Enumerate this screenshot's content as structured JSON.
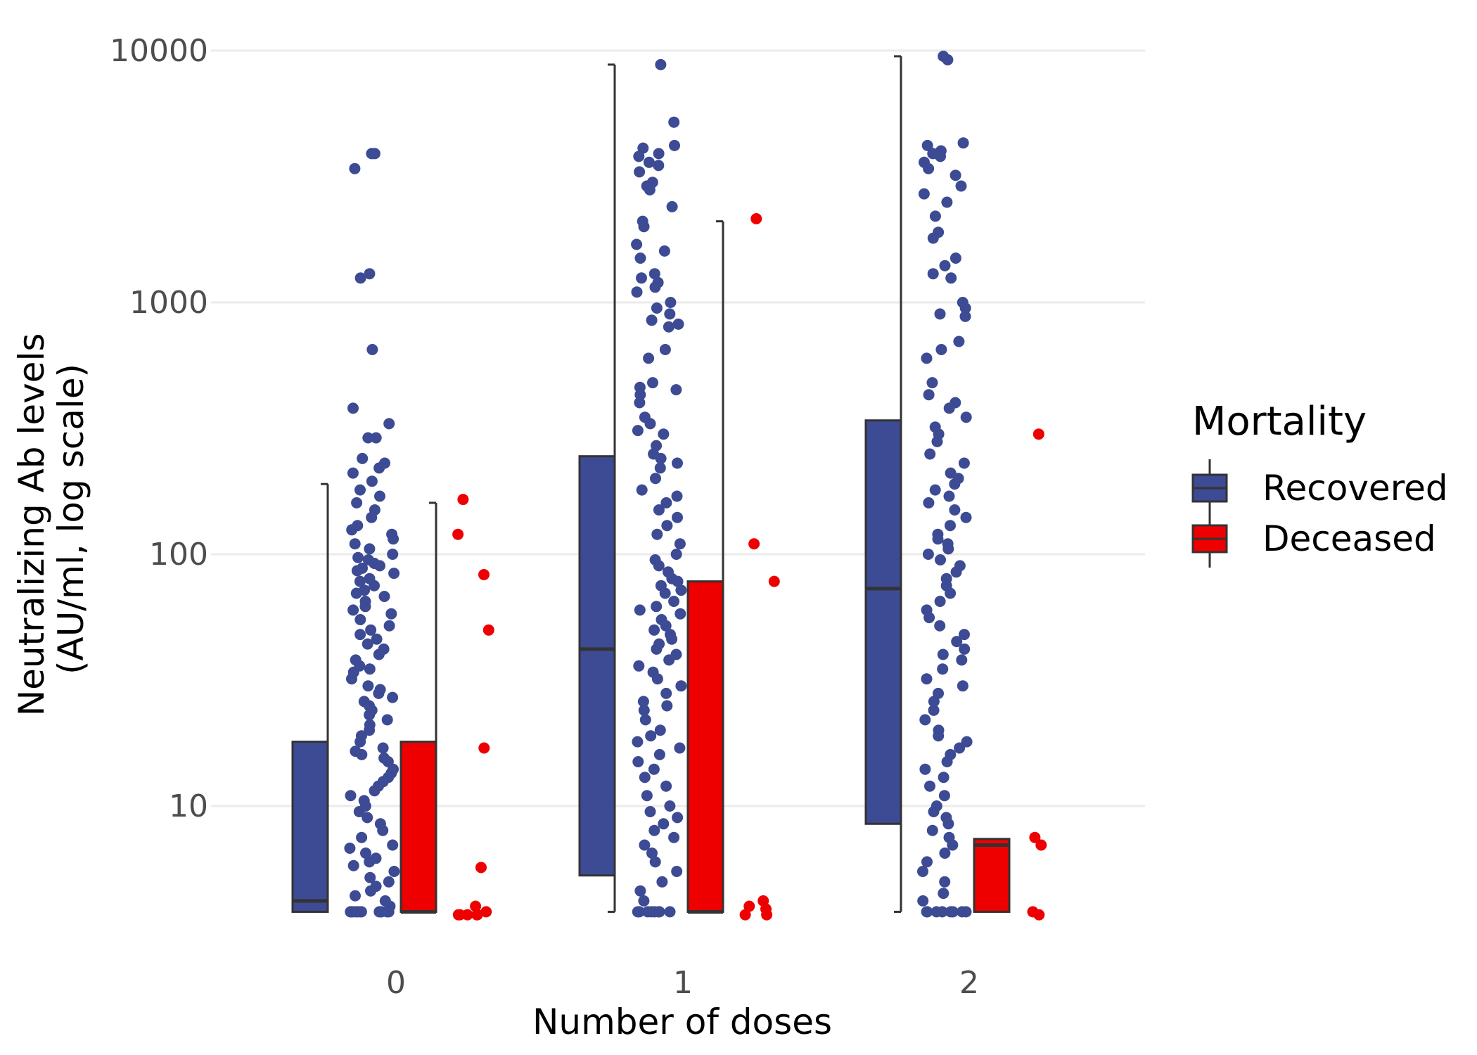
{
  "chart_data": {
    "type": "box",
    "xlabel": "Number of doses",
    "ylabel_line1": "Neutralizing Ab levels",
    "ylabel_line2": "(AU/ml, log scale)",
    "yscale": "log10",
    "ylim": [
      3.3,
      10000
    ],
    "yticks": [
      "10",
      "100",
      "1000",
      "10000"
    ],
    "categories": [
      "0",
      "1",
      "2"
    ],
    "grid": "horizontal major",
    "legend": {
      "title": "Mortality",
      "position": "right",
      "entries": [
        "Recovered",
        "Deceased"
      ]
    },
    "colors": {
      "Recovered": "#3c4b93",
      "Deceased": "#ee0000"
    },
    "series": [
      {
        "name": "Recovered",
        "boxes": [
          {
            "dose": "0",
            "whisker_low": 3.8,
            "q1": 3.8,
            "median": 4.2,
            "q3": 18,
            "whisker_high": 190
          },
          {
            "dose": "1",
            "whisker_low": 3.8,
            "q1": 5.3,
            "median": 42,
            "q3": 245,
            "whisker_high": 8800
          },
          {
            "dose": "2",
            "whisker_low": 3.8,
            "q1": 8.5,
            "median": 73,
            "q3": 340,
            "whisker_high": 9500
          }
        ],
        "points": [
          {
            "dose": "0",
            "y": [
              3900,
              3900,
              3400,
              1250,
              1300,
              650,
              380,
              330,
              290,
              290,
              240,
              230,
              220,
              210,
              195,
              180,
              170,
              160,
              150,
              140,
              130,
              125,
              120,
              115,
              110,
              105,
              100,
              97,
              95,
              92,
              90,
              88,
              86,
              84,
              80,
              78,
              75,
              72,
              70,
              68,
              65,
              62,
              60,
              58,
              55,
              52,
              50,
              48,
              46,
              44,
              42,
              40,
              38,
              36,
              35,
              34,
              32,
              30,
              29,
              28,
              27,
              26,
              25,
              24,
              23,
              22,
              21,
              20,
              19,
              18,
              17,
              16.5,
              16,
              15.5,
              15,
              14,
              13.5,
              13,
              12.5,
              12,
              11.5,
              11,
              10.5,
              10,
              9.5,
              9,
              8.5,
              8,
              7.5,
              7,
              6.8,
              6.5,
              6.2,
              6,
              5.8,
              5.5,
              5.2,
              5,
              4.8,
              4.6,
              4.4,
              4.2,
              4,
              3.8,
              3.8,
              3.8,
              3.8,
              3.8,
              3.8,
              3.8,
              3.8,
              3.8,
              3.8,
              3.8,
              3.8,
              3.8
            ]
          },
          {
            "dose": "1",
            "y": [
              8800,
              5200,
              4200,
              4100,
              3900,
              3800,
              3600,
              3500,
              3300,
              3000,
              2900,
              2800,
              2400,
              2100,
              2000,
              1700,
              1600,
              1500,
              1300,
              1250,
              1200,
              1150,
              1100,
              1000,
              950,
              900,
              850,
              820,
              800,
              650,
              600,
              480,
              460,
              450,
              430,
              400,
              350,
              330,
              310,
              300,
              270,
              250,
              240,
              230,
              220,
              200,
              180,
              170,
              160,
              150,
              140,
              130,
              120,
              110,
              100,
              95,
              90,
              85,
              80,
              78,
              75,
              72,
              70,
              65,
              62,
              60,
              58,
              55,
              52,
              50,
              48,
              46,
              44,
              42,
              40,
              38,
              36,
              34,
              32,
              30,
              28,
              26,
              25,
              24,
              22,
              20,
              19,
              18,
              17,
              16,
              15,
              14,
              13,
              12,
              11,
              10,
              9.5,
              9,
              8.5,
              8,
              7.5,
              7,
              6.5,
              6,
              5.5,
              5,
              4.6,
              4.2,
              3.8,
              3.8,
              3.8,
              3.8,
              3.8,
              3.8,
              3.8,
              3.8
            ]
          },
          {
            "dose": "2",
            "y": [
              9500,
              9200,
              4300,
              4200,
              4000,
              3900,
              3800,
              3600,
              3400,
              3200,
              2900,
              2700,
              2500,
              2200,
              1900,
              1800,
              1500,
              1400,
              1300,
              1250,
              1000,
              950,
              900,
              880,
              700,
              650,
              600,
              480,
              430,
              400,
              380,
              350,
              320,
              300,
              280,
              250,
              230,
              210,
              200,
              190,
              180,
              170,
              160,
              150,
              140,
              130,
              120,
              115,
              110,
              105,
              100,
              95,
              90,
              85,
              80,
              75,
              70,
              65,
              60,
              56,
              52,
              48,
              45,
              42,
              40,
              38,
              35,
              32,
              30,
              28,
              26,
              24,
              22,
              20,
              19,
              18,
              17,
              16,
              15,
              14,
              13,
              12,
              11,
              10,
              9.5,
              9,
              8.5,
              8,
              7.5,
              7,
              6.5,
              6,
              5.5,
              5,
              4.5,
              4.2,
              3.8,
              3.8,
              3.8,
              3.8,
              3.8,
              3.8,
              3.8,
              3.8
            ]
          }
        ]
      },
      {
        "name": "Deceased",
        "boxes": [
          {
            "dose": "0",
            "whisker_low": 3.8,
            "q1": 3.8,
            "median": 3.8,
            "q3": 18,
            "whisker_high": 160
          },
          {
            "dose": "1",
            "whisker_low": 3.8,
            "q1": 3.8,
            "median": 3.8,
            "q3": 78,
            "whisker_high": 2100
          },
          {
            "dose": "2",
            "whisker_low": 3.8,
            "q1": 3.8,
            "median": 7,
            "q3": 7.4,
            "whisker_high": 7.4
          }
        ],
        "points": [
          {
            "dose": "0",
            "y": [
              165,
              120,
              83,
              50,
              17,
              5.7,
              4.0,
              3.8,
              3.7,
              3.7,
              3.7,
              3.7,
              3.7
            ]
          },
          {
            "dose": "1",
            "y": [
              2150,
              110,
              78,
              4.2,
              4.0,
              3.9,
              3.7,
              3.7
            ]
          },
          {
            "dose": "2",
            "y": [
              300,
              7.5,
              7.0,
              3.8,
              3.7
            ]
          }
        ]
      }
    ]
  }
}
